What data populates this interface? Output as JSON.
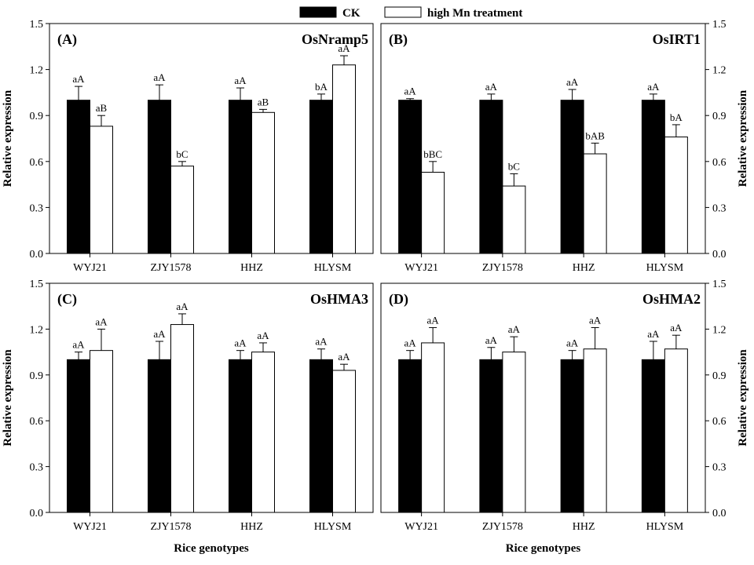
{
  "legend": [
    {
      "label": "CK",
      "color": "#000000"
    },
    {
      "label": "high Mn treatment",
      "color": "#ffffff"
    }
  ],
  "chart_data": [
    {
      "type": "bar",
      "panel": "(A)",
      "title": "OsNramp5",
      "xlabel": "",
      "ylabel": "Relative expression",
      "ylim": [
        0,
        1.5
      ],
      "yticks": [
        "0.0",
        "0.3",
        "0.6",
        "0.9",
        "1.2",
        "1.5"
      ],
      "categories": [
        "WYJ21",
        "ZJY1578",
        "HHZ",
        "HLYSM"
      ],
      "series": [
        {
          "name": "CK",
          "color": "#000000",
          "values": [
            1.0,
            1.0,
            1.0,
            1.0
          ],
          "errors": [
            0.09,
            0.1,
            0.08,
            0.04
          ],
          "labels": [
            "aA",
            "aA",
            "aA",
            "bA"
          ]
        },
        {
          "name": "high Mn treatment",
          "color": "#ffffff",
          "values": [
            0.83,
            0.57,
            0.92,
            1.23
          ],
          "errors": [
            0.07,
            0.03,
            0.02,
            0.06
          ],
          "labels": [
            "aB",
            "bC",
            "aB",
            "aA"
          ]
        }
      ]
    },
    {
      "type": "bar",
      "panel": "(B)",
      "title": "OsIRT1",
      "xlabel": "",
      "ylabel": "Relative expression",
      "ylim": [
        0,
        1.5
      ],
      "yticks": [
        "0.0",
        "0.3",
        "0.6",
        "0.9",
        "1.2",
        "1.5"
      ],
      "categories": [
        "WYJ21",
        "ZJY1578",
        "HHZ",
        "HLYSM"
      ],
      "series": [
        {
          "name": "CK",
          "color": "#000000",
          "values": [
            1.0,
            1.0,
            1.0,
            1.0
          ],
          "errors": [
            0.01,
            0.04,
            0.07,
            0.04
          ],
          "labels": [
            "aA",
            "aA",
            "aA",
            "aA"
          ]
        },
        {
          "name": "high Mn treatment",
          "color": "#ffffff",
          "values": [
            0.53,
            0.44,
            0.65,
            0.76
          ],
          "errors": [
            0.07,
            0.08,
            0.07,
            0.08
          ],
          "labels": [
            "bBC",
            "bC",
            "bAB",
            "bA"
          ]
        }
      ]
    },
    {
      "type": "bar",
      "panel": "(C)",
      "title": "OsHMA3",
      "xlabel": "Rice genotypes",
      "ylabel": "Relative expression",
      "ylim": [
        0,
        1.5
      ],
      "yticks": [
        "0.0",
        "0.3",
        "0.6",
        "0.9",
        "1.2",
        "1.5"
      ],
      "categories": [
        "WYJ21",
        "ZJY1578",
        "HHZ",
        "HLYSM"
      ],
      "series": [
        {
          "name": "CK",
          "color": "#000000",
          "values": [
            1.0,
            1.0,
            1.0,
            1.0
          ],
          "errors": [
            0.05,
            0.12,
            0.06,
            0.07
          ],
          "labels": [
            "aA",
            "aA",
            "aA",
            "aA"
          ]
        },
        {
          "name": "high Mn treatment",
          "color": "#ffffff",
          "values": [
            1.06,
            1.23,
            1.05,
            0.93
          ],
          "errors": [
            0.14,
            0.07,
            0.06,
            0.04
          ],
          "labels": [
            "aA",
            "aA",
            "aA",
            "aA"
          ]
        }
      ]
    },
    {
      "type": "bar",
      "panel": "(D)",
      "title": "OsHMA2",
      "xlabel": "Rice genotypes",
      "ylabel": "Relative expression",
      "ylim": [
        0,
        1.5
      ],
      "yticks": [
        "0.0",
        "0.3",
        "0.6",
        "0.9",
        "1.2",
        "1.5"
      ],
      "categories": [
        "WYJ21",
        "ZJY1578",
        "HHZ",
        "HLYSM"
      ],
      "series": [
        {
          "name": "CK",
          "color": "#000000",
          "values": [
            1.0,
            1.0,
            1.0,
            1.0
          ],
          "errors": [
            0.06,
            0.08,
            0.06,
            0.12
          ],
          "labels": [
            "aA",
            "aA",
            "aA",
            "aA"
          ]
        },
        {
          "name": "high Mn treatment",
          "color": "#ffffff",
          "values": [
            1.11,
            1.05,
            1.07,
            1.07
          ],
          "errors": [
            0.1,
            0.1,
            0.14,
            0.09
          ],
          "labels": [
            "aA",
            "aA",
            "aA",
            "aA"
          ]
        }
      ]
    }
  ]
}
